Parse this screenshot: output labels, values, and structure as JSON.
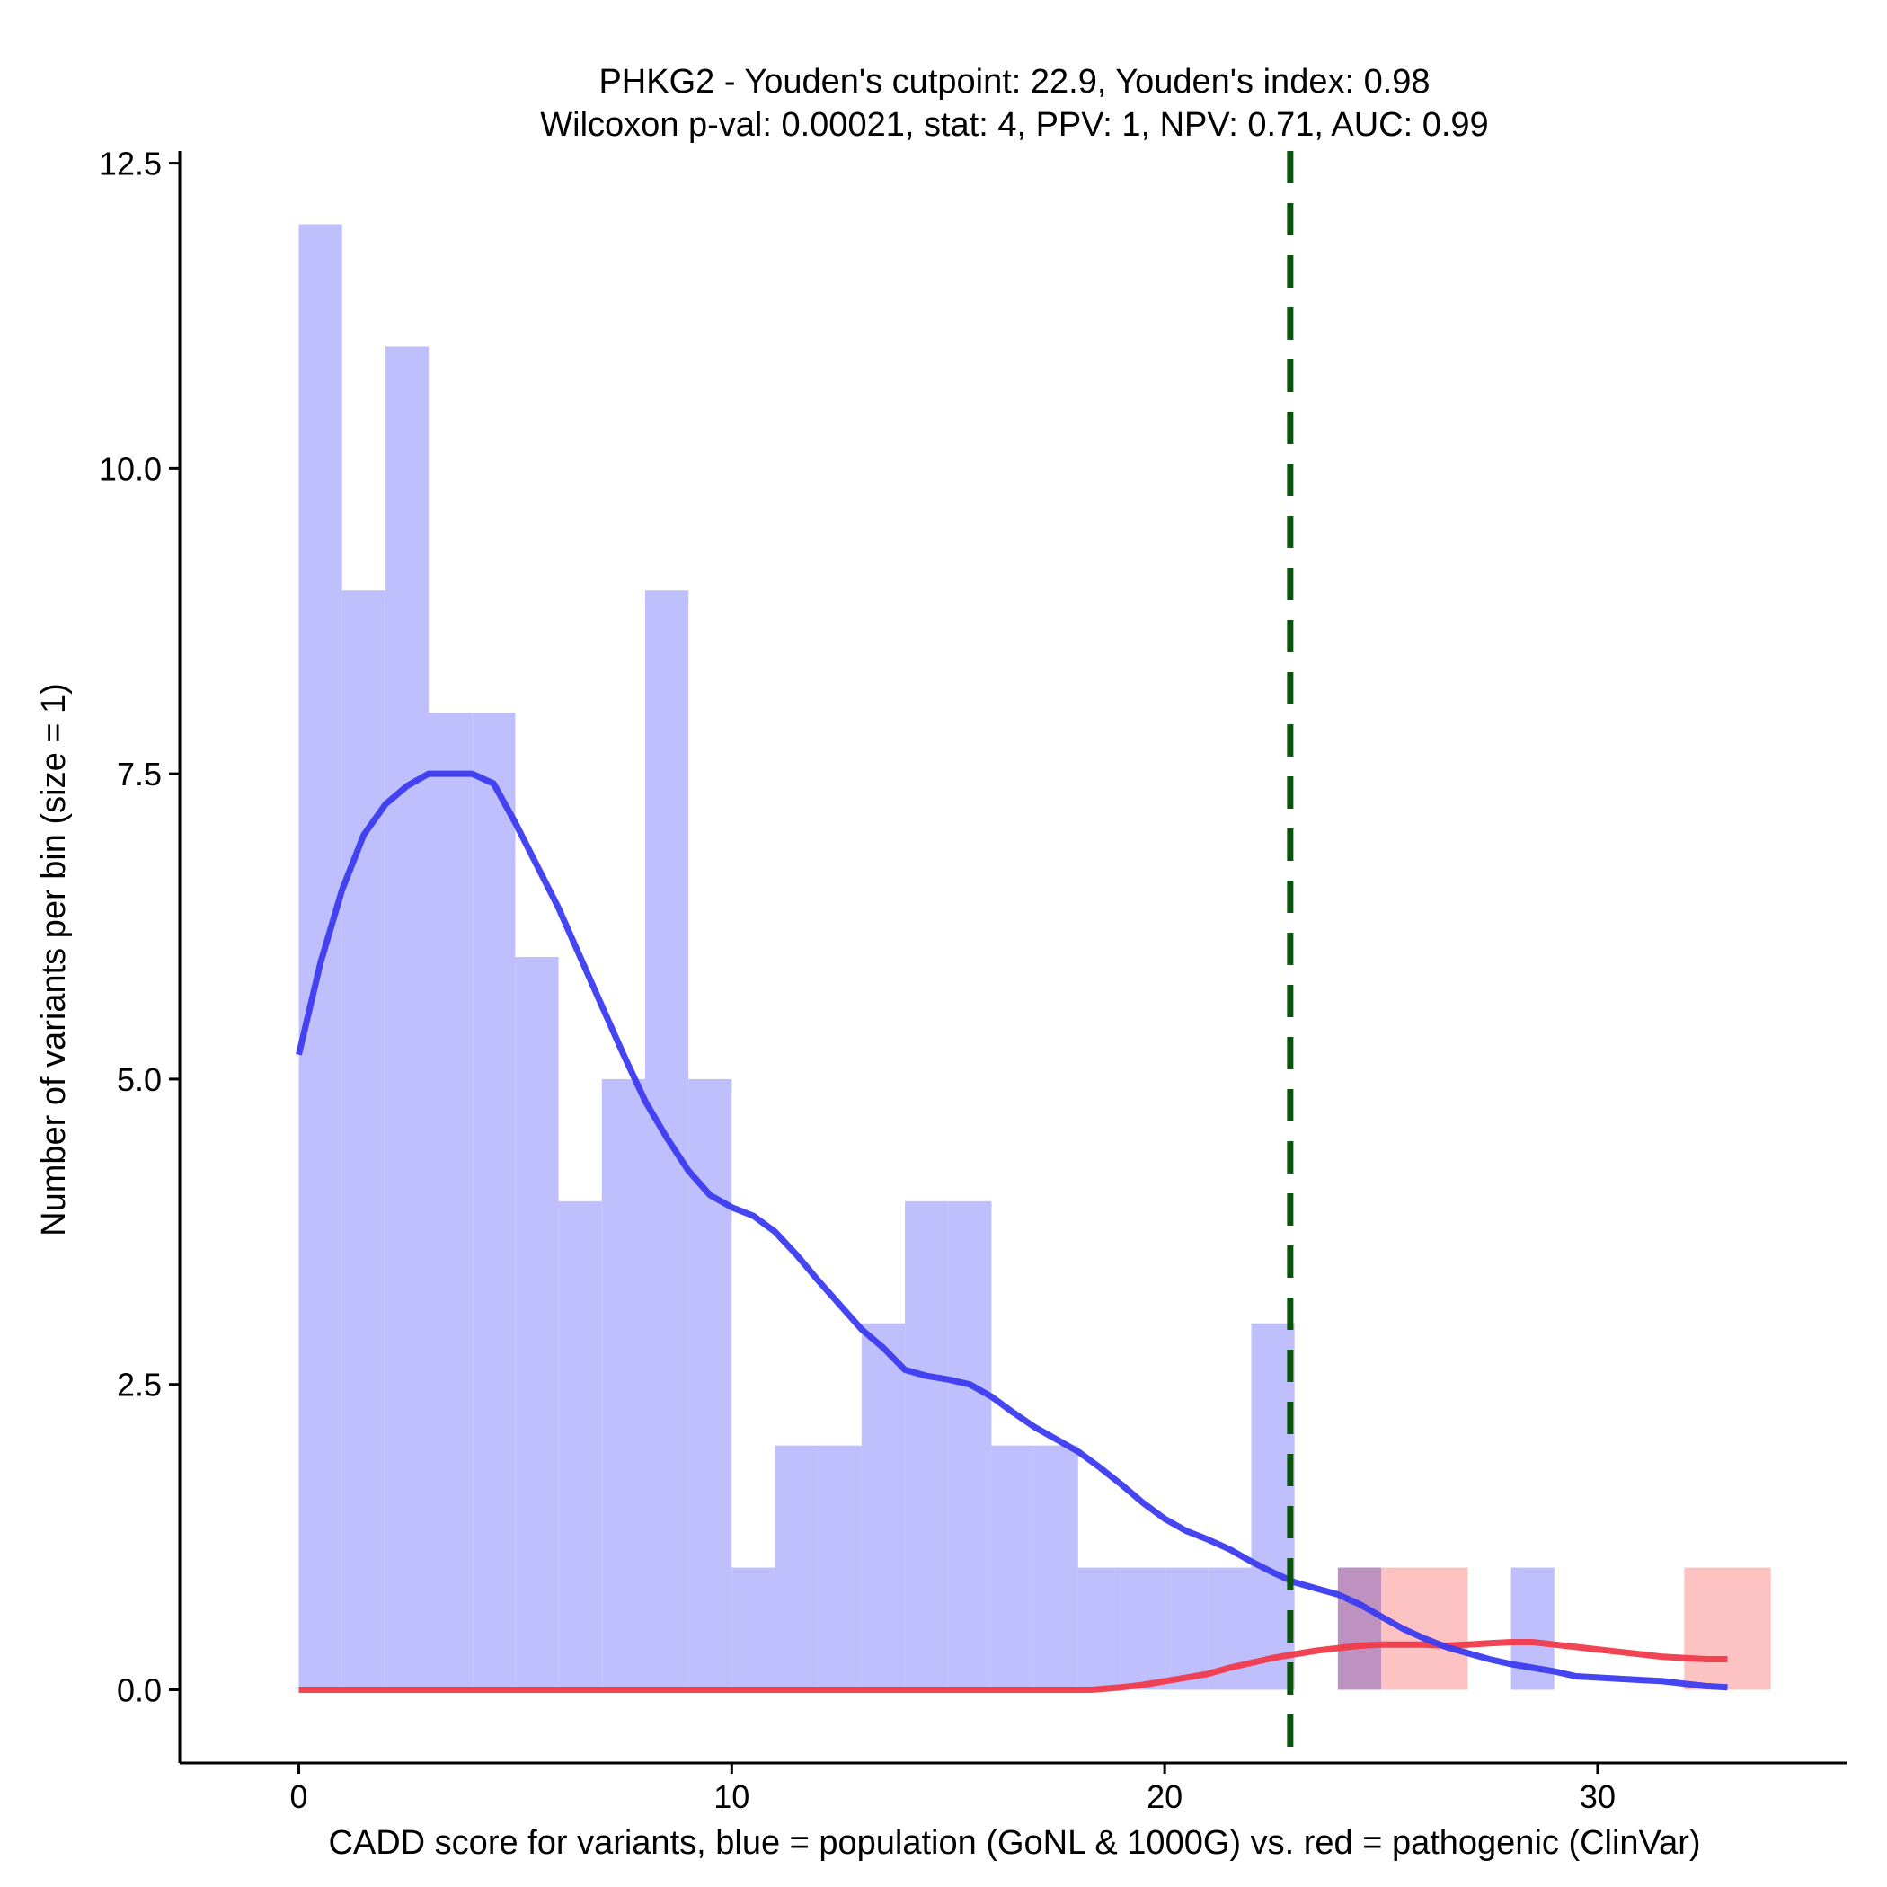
{
  "chart_data": {
    "type": "bar",
    "title_line1": "PHKG2 - Youden's cutpoint: 22.9, Youden's index: 0.98",
    "title_line2": "Wilcoxon p-val: 0.00021, stat: 4, PPV: 1, NPV: 0.71, AUC: 0.99",
    "xlabel": "CADD score for variants, blue = population (GoNL & 1000G) vs. red = pathogenic (ClinVar)",
    "ylabel": "Number of variants per bin (size = 1)",
    "xlim": [
      -2.75,
      35.75
    ],
    "ylim": [
      -0.6,
      12.6
    ],
    "x_ticks": [
      0,
      10,
      20,
      30
    ],
    "x_tick_labels": [
      "0",
      "10",
      "20",
      "30"
    ],
    "y_ticks": [
      0,
      2.5,
      5,
      7.5,
      10,
      12.5
    ],
    "y_tick_labels": [
      "0.0",
      "2.5",
      "5.0",
      "7.5",
      "10.0",
      "12.5"
    ],
    "bin_width": 1,
    "cutpoint": 22.9,
    "colors": {
      "population_bar": "#bfbffd",
      "pathogenic_bar": "#fdbfbf",
      "population_line": "#3b3bf0",
      "pathogenic_line": "#f03b4b",
      "cutpoint_line": "#0b540b"
    },
    "series": [
      {
        "name": "population",
        "bins": [
          {
            "x0": 0,
            "count": 12
          },
          {
            "x0": 1,
            "count": 9
          },
          {
            "x0": 2,
            "count": 11
          },
          {
            "x0": 3,
            "count": 8
          },
          {
            "x0": 4,
            "count": 8
          },
          {
            "x0": 5,
            "count": 6
          },
          {
            "x0": 6,
            "count": 4
          },
          {
            "x0": 7,
            "count": 5
          },
          {
            "x0": 8,
            "count": 9
          },
          {
            "x0": 9,
            "count": 5
          },
          {
            "x0": 10,
            "count": 1
          },
          {
            "x0": 11,
            "count": 2
          },
          {
            "x0": 12,
            "count": 2
          },
          {
            "x0": 13,
            "count": 3
          },
          {
            "x0": 14,
            "count": 4
          },
          {
            "x0": 15,
            "count": 4
          },
          {
            "x0": 16,
            "count": 2
          },
          {
            "x0": 17,
            "count": 2
          },
          {
            "x0": 18,
            "count": 1
          },
          {
            "x0": 19,
            "count": 1
          },
          {
            "x0": 20,
            "count": 1
          },
          {
            "x0": 21,
            "count": 1
          },
          {
            "x0": 22,
            "count": 3
          },
          {
            "x0": 24,
            "count": 1
          },
          {
            "x0": 28,
            "count": 1
          }
        ],
        "density_curve": [
          [
            0,
            5.2
          ],
          [
            0.5,
            5.95
          ],
          [
            1,
            6.55
          ],
          [
            1.5,
            7.0
          ],
          [
            2,
            7.25
          ],
          [
            2.5,
            7.4
          ],
          [
            3,
            7.5
          ],
          [
            3.5,
            7.5
          ],
          [
            4,
            7.5
          ],
          [
            4.5,
            7.42
          ],
          [
            5,
            7.1
          ],
          [
            5.5,
            6.75
          ],
          [
            6,
            6.4
          ],
          [
            6.5,
            6.0
          ],
          [
            7,
            5.6
          ],
          [
            7.5,
            5.2
          ],
          [
            8,
            4.82
          ],
          [
            8.5,
            4.52
          ],
          [
            9,
            4.25
          ],
          [
            9.5,
            4.05
          ],
          [
            10,
            3.95
          ],
          [
            10.5,
            3.88
          ],
          [
            11,
            3.75
          ],
          [
            11.5,
            3.56
          ],
          [
            12,
            3.35
          ],
          [
            12.5,
            3.15
          ],
          [
            13,
            2.95
          ],
          [
            13.5,
            2.8
          ],
          [
            14,
            2.62
          ],
          [
            14.5,
            2.57
          ],
          [
            15,
            2.54
          ],
          [
            15.5,
            2.5
          ],
          [
            16,
            2.4
          ],
          [
            16.5,
            2.27
          ],
          [
            17,
            2.15
          ],
          [
            17.5,
            2.05
          ],
          [
            18,
            1.95
          ],
          [
            18.5,
            1.82
          ],
          [
            19,
            1.68
          ],
          [
            19.5,
            1.53
          ],
          [
            20,
            1.4
          ],
          [
            20.5,
            1.3
          ],
          [
            21,
            1.23
          ],
          [
            21.5,
            1.15
          ],
          [
            22,
            1.05
          ],
          [
            22.5,
            0.96
          ],
          [
            23,
            0.88
          ],
          [
            23.5,
            0.83
          ],
          [
            24,
            0.78
          ],
          [
            24.5,
            0.7
          ],
          [
            25,
            0.6
          ],
          [
            25.5,
            0.5
          ],
          [
            26,
            0.42
          ],
          [
            26.5,
            0.35
          ],
          [
            27,
            0.3
          ],
          [
            27.5,
            0.25
          ],
          [
            28,
            0.21
          ],
          [
            28.5,
            0.18
          ],
          [
            29,
            0.15
          ],
          [
            29.5,
            0.11
          ],
          [
            30,
            0.1
          ],
          [
            30.5,
            0.09
          ],
          [
            31,
            0.08
          ],
          [
            31.5,
            0.07
          ],
          [
            32,
            0.05
          ],
          [
            32.5,
            0.03
          ],
          [
            33,
            0.02
          ]
        ]
      },
      {
        "name": "pathogenic",
        "bins": [
          {
            "x0": 24,
            "count": 1
          },
          {
            "x0": 25,
            "count": 1
          },
          {
            "x0": 26,
            "count": 1
          },
          {
            "x0": 32,
            "count": 1
          },
          {
            "x0": 33,
            "count": 1
          }
        ],
        "density_curve": [
          [
            0,
            0
          ],
          [
            6,
            0
          ],
          [
            12,
            0
          ],
          [
            18.3,
            0
          ],
          [
            19,
            0.02
          ],
          [
            19.5,
            0.04
          ],
          [
            20,
            0.07
          ],
          [
            20.5,
            0.1
          ],
          [
            21,
            0.13
          ],
          [
            21.5,
            0.18
          ],
          [
            22,
            0.22
          ],
          [
            22.5,
            0.26
          ],
          [
            23,
            0.29
          ],
          [
            23.5,
            0.32
          ],
          [
            24,
            0.34
          ],
          [
            24.5,
            0.36
          ],
          [
            25,
            0.37
          ],
          [
            25.5,
            0.37
          ],
          [
            26,
            0.37
          ],
          [
            26.5,
            0.36
          ],
          [
            27,
            0.37
          ],
          [
            27.5,
            0.38
          ],
          [
            28,
            0.39
          ],
          [
            28.5,
            0.39
          ],
          [
            29,
            0.37
          ],
          [
            29.5,
            0.35
          ],
          [
            30,
            0.33
          ],
          [
            30.5,
            0.31
          ],
          [
            31,
            0.29
          ],
          [
            31.5,
            0.27
          ],
          [
            32,
            0.26
          ],
          [
            32.5,
            0.25
          ],
          [
            33,
            0.25
          ]
        ]
      }
    ]
  }
}
